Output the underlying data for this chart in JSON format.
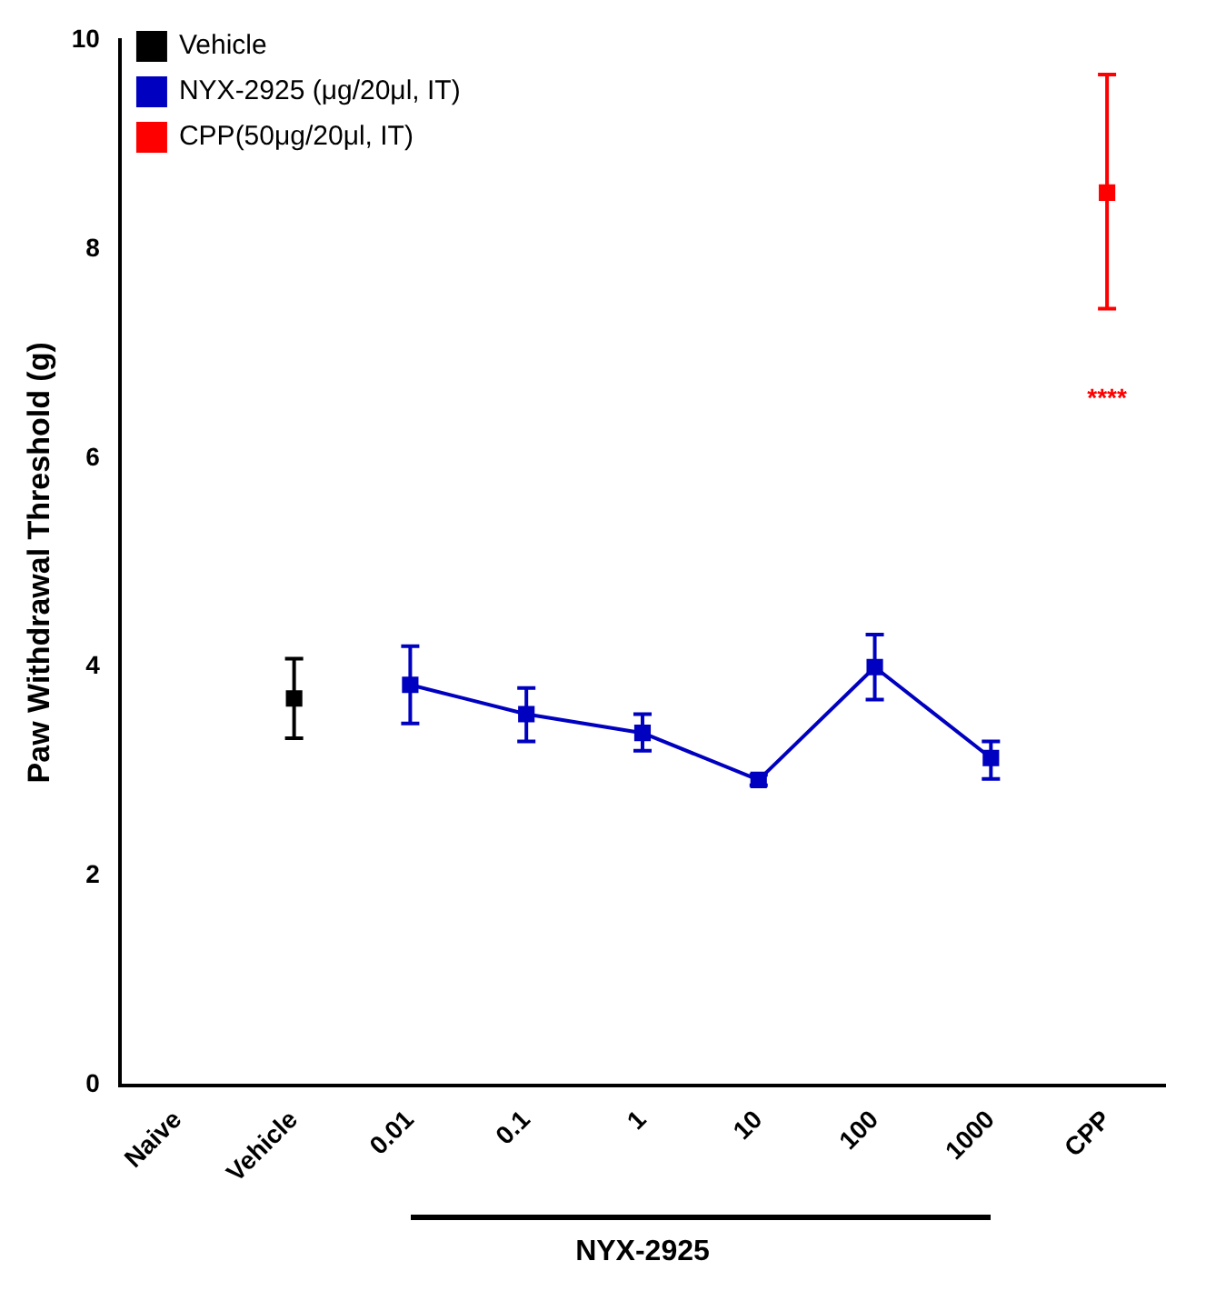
{
  "chart_data": {
    "type": "line",
    "ylabel": "Paw Withdrawal Threshold (g)",
    "xlabel": "NYX-2925",
    "categories": [
      "Naive",
      "Vehicle",
      "0.01",
      "0.1",
      "1",
      "10",
      "100",
      "1000",
      "CPP"
    ],
    "ylim": [
      0,
      10
    ],
    "yticks": [
      0,
      2,
      4,
      6,
      8,
      10
    ],
    "grid": false,
    "legend": "top left",
    "marker": "square",
    "line_style": "solid",
    "series": [
      {
        "name": "Vehicle",
        "type": "scatter",
        "color": "#000000",
        "values": [
          null,
          3.7,
          null,
          null,
          null,
          null,
          null,
          null,
          null
        ],
        "errors": [
          null,
          [
            3.32,
            4.08
          ],
          null,
          null,
          null,
          null,
          null,
          null,
          null
        ]
      },
      {
        "name": "NYX-2925 (μg/20μl, IT)",
        "type": "line",
        "color": "#0000c0",
        "values": [
          null,
          null,
          3.83,
          3.55,
          3.37,
          2.92,
          4.0,
          3.13,
          null
        ],
        "errors": [
          null,
          null,
          [
            3.46,
            4.2
          ],
          [
            3.29,
            3.8
          ],
          [
            3.2,
            3.55
          ],
          [
            2.87,
            2.97
          ],
          [
            3.69,
            4.31
          ],
          [
            2.93,
            3.29
          ],
          null
        ]
      },
      {
        "name": "CPP(50μg/20μl, IT)",
        "type": "scatter",
        "color": "#ff0000",
        "values": [
          null,
          null,
          null,
          null,
          null,
          null,
          null,
          null,
          8.54
        ],
        "errors": [
          null,
          null,
          null,
          null,
          null,
          null,
          null,
          null,
          [
            7.43,
            9.67
          ]
        ]
      }
    ],
    "annotations": [
      "****"
    ]
  }
}
